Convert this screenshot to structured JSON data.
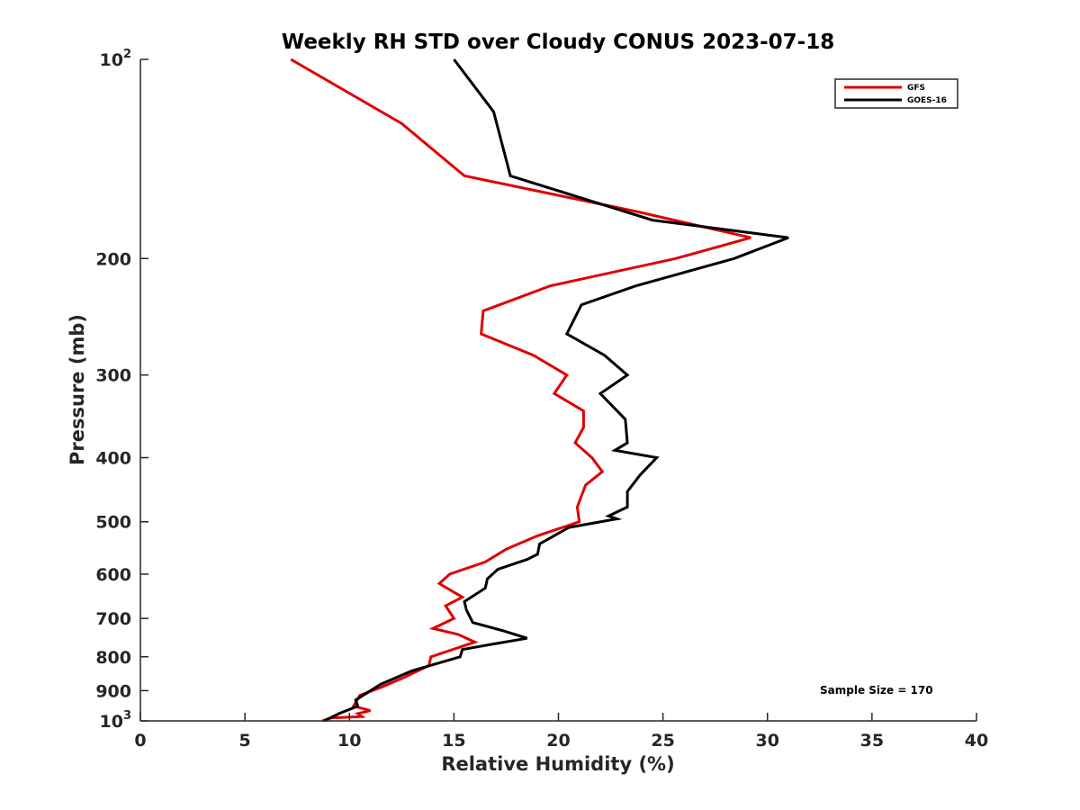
{
  "chart_data": {
    "type": "line",
    "title": "Weekly RH STD over Cloudy CONUS 2023-07-18",
    "xlabel": "Relative Humidity (%)",
    "ylabel": "Pressure (mb)",
    "xlim": [
      0,
      40
    ],
    "ylim": [
      100,
      1000
    ],
    "y_scale": "log",
    "y_reversed": true,
    "grid": false,
    "x_ticks": [
      0,
      5,
      10,
      15,
      20,
      25,
      30,
      35,
      40
    ],
    "x_tick_labels": [
      "0",
      "5",
      "10",
      "15",
      "20",
      "25",
      "30",
      "35",
      "40"
    ],
    "y_ticks": [
      100,
      200,
      300,
      400,
      500,
      600,
      700,
      800,
      900,
      1000
    ],
    "y_tick_labels": [
      {
        "base": "10",
        "sup": "2"
      },
      {
        "base": "200",
        "sup": ""
      },
      {
        "base": "300",
        "sup": ""
      },
      {
        "base": "400",
        "sup": ""
      },
      {
        "base": "500",
        "sup": ""
      },
      {
        "base": "600",
        "sup": ""
      },
      {
        "base": "700",
        "sup": ""
      },
      {
        "base": "800",
        "sup": ""
      },
      {
        "base": "900",
        "sup": ""
      },
      {
        "base": "10",
        "sup": "3"
      }
    ],
    "legend_position": "top-right",
    "series": [
      {
        "name": "GFS",
        "color": "#e00000",
        "points": [
          [
            7.2,
            100
          ],
          [
            12.5,
            125
          ],
          [
            15.5,
            150
          ],
          [
            23.8,
            170
          ],
          [
            29.2,
            186
          ],
          [
            25.6,
            200
          ],
          [
            19.6,
            220
          ],
          [
            16.4,
            240
          ],
          [
            16.3,
            260
          ],
          [
            18.8,
            280
          ],
          [
            20.4,
            300
          ],
          [
            19.8,
            320
          ],
          [
            21.2,
            340
          ],
          [
            21.2,
            360
          ],
          [
            20.8,
            380
          ],
          [
            21.6,
            400
          ],
          [
            22.1,
            420
          ],
          [
            21.3,
            440
          ],
          [
            20.9,
            475
          ],
          [
            21.0,
            500
          ],
          [
            19.0,
            525
          ],
          [
            17.5,
            550
          ],
          [
            16.5,
            575
          ],
          [
            14.8,
            600
          ],
          [
            14.3,
            620
          ],
          [
            15.4,
            650
          ],
          [
            14.6,
            670
          ],
          [
            15.0,
            700
          ],
          [
            14.0,
            725
          ],
          [
            15.2,
            740
          ],
          [
            16.0,
            760
          ],
          [
            13.9,
            800
          ],
          [
            13.8,
            825
          ],
          [
            12.6,
            860
          ],
          [
            11.5,
            890
          ],
          [
            10.5,
            915
          ],
          [
            10.2,
            950
          ],
          [
            11.0,
            965
          ],
          [
            10.4,
            975
          ],
          [
            10.6,
            985
          ],
          [
            9.1,
            990
          ],
          [
            8.7,
            1000
          ]
        ]
      },
      {
        "name": "GOES-16",
        "color": "#000000",
        "points": [
          [
            15.0,
            100
          ],
          [
            16.9,
            120
          ],
          [
            17.7,
            150
          ],
          [
            24.5,
            175
          ],
          [
            31.0,
            186
          ],
          [
            28.4,
            200
          ],
          [
            23.7,
            220
          ],
          [
            21.1,
            235
          ],
          [
            20.4,
            260
          ],
          [
            22.2,
            280
          ],
          [
            23.3,
            300
          ],
          [
            22.0,
            320
          ],
          [
            23.2,
            350
          ],
          [
            23.3,
            380
          ],
          [
            22.7,
            390
          ],
          [
            24.7,
            400
          ],
          [
            23.9,
            425
          ],
          [
            23.3,
            450
          ],
          [
            23.3,
            475
          ],
          [
            22.4,
            490
          ],
          [
            22.8,
            495
          ],
          [
            20.5,
            510
          ],
          [
            19.1,
            540
          ],
          [
            19.0,
            560
          ],
          [
            18.5,
            570
          ],
          [
            17.1,
            590
          ],
          [
            16.6,
            610
          ],
          [
            16.5,
            630
          ],
          [
            15.5,
            660
          ],
          [
            15.6,
            680
          ],
          [
            15.8,
            700
          ],
          [
            15.9,
            710
          ],
          [
            17.3,
            730
          ],
          [
            18.5,
            750
          ],
          [
            16.9,
            765
          ],
          [
            15.4,
            780
          ],
          [
            15.3,
            800
          ],
          [
            13.0,
            840
          ],
          [
            11.5,
            880
          ],
          [
            10.3,
            930
          ],
          [
            10.4,
            950
          ],
          [
            9.5,
            975
          ],
          [
            8.8,
            1000
          ]
        ]
      }
    ],
    "annotations": [
      {
        "text": "Sample Size = 170"
      }
    ]
  }
}
